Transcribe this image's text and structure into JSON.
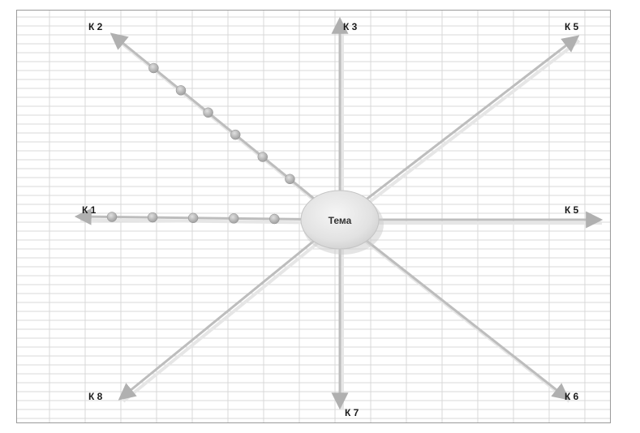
{
  "center": {
    "label": "Тема"
  },
  "axes": [
    {
      "id": "k1",
      "label": "К 1",
      "dots": 5
    },
    {
      "id": "k2",
      "label": "К 2",
      "dots": 6
    },
    {
      "id": "k3",
      "label": "К 3",
      "dots": 0
    },
    {
      "id": "k4",
      "label": "К 5",
      "dots": 0
    },
    {
      "id": "k5",
      "label": "К 5",
      "dots": 0
    },
    {
      "id": "k6",
      "label": "К 6",
      "dots": 0
    },
    {
      "id": "k7",
      "label": "К 7",
      "dots": 0
    },
    {
      "id": "k8",
      "label": "К 8",
      "dots": 0
    }
  ],
  "colors": {
    "arrow": "#bdbdbd",
    "dot": "#a9a9a9",
    "grid": "#d9d9d9",
    "ellipse": "#e6e6e6"
  }
}
